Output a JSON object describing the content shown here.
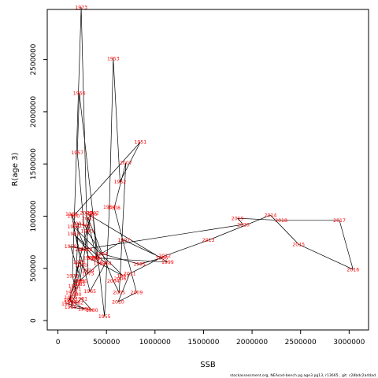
{
  "chart_data": {
    "type": "line",
    "xlabel": "SSB",
    "ylabel": "R(age 3)",
    "xlim": [
      -110000,
      3200000
    ],
    "ylim": [
      -90000,
      2980000
    ],
    "xticks": [
      0,
      500000,
      1000000,
      1500000,
      2000000,
      2500000,
      3000000
    ],
    "yticks": [
      0,
      500000,
      1000000,
      1500000,
      2000000,
      2500000
    ],
    "grid": false,
    "colors": {
      "line": "#000000",
      "labels": "#ff0000"
    },
    "points": [
      {
        "year": "1950",
        "x": 160000,
        "y": 1000000
      },
      {
        "year": "1951",
        "x": 850000,
        "y": 1710000
      },
      {
        "year": "1952",
        "x": 640000,
        "y": 1330000
      },
      {
        "year": "1953",
        "x": 570000,
        "y": 2510000
      },
      {
        "year": "1954",
        "x": 530000,
        "y": 1090000
      },
      {
        "year": "1955",
        "x": 480000,
        "y": 40000
      },
      {
        "year": "1956",
        "x": 220000,
        "y": 2180000
      },
      {
        "year": "1957",
        "x": 200000,
        "y": 1610000
      },
      {
        "year": "1958",
        "x": 290000,
        "y": 680000
      },
      {
        "year": "1959",
        "x": 130000,
        "y": 710000
      },
      {
        "year": "1960",
        "x": 240000,
        "y": 380000
      },
      {
        "year": "1961",
        "x": 220000,
        "y": 380000
      },
      {
        "year": "1962",
        "x": 430000,
        "y": 550000
      },
      {
        "year": "1963",
        "x": 160000,
        "y": 830000
      },
      {
        "year": "1964",
        "x": 490000,
        "y": 550000
      },
      {
        "year": "1965",
        "x": 330000,
        "y": 280000
      },
      {
        "year": "1966",
        "x": 160000,
        "y": 900000
      },
      {
        "year": "1967",
        "x": 670000,
        "y": 430000
      },
      {
        "year": "1968",
        "x": 320000,
        "y": 600000
      },
      {
        "year": "1969",
        "x": 140000,
        "y": 1020000
      },
      {
        "year": "1970",
        "x": 240000,
        "y": 530000
      },
      {
        "year": "1971",
        "x": 180000,
        "y": 300000
      },
      {
        "year": "1972",
        "x": 150000,
        "y": 430000
      },
      {
        "year": "1973",
        "x": 240000,
        "y": 3000000
      },
      {
        "year": "1974",
        "x": 310000,
        "y": 480000
      },
      {
        "year": "1975",
        "x": 310000,
        "y": 450000
      },
      {
        "year": "1976",
        "x": 220000,
        "y": 560000
      },
      {
        "year": "1977",
        "x": 170000,
        "y": 330000
      },
      {
        "year": "1978",
        "x": 140000,
        "y": 270000
      },
      {
        "year": "1979",
        "x": 100000,
        "y": 160000
      },
      {
        "year": "1980",
        "x": 350000,
        "y": 100000
      },
      {
        "year": "1981",
        "x": 240000,
        "y": 210000
      },
      {
        "year": "1982",
        "x": 200000,
        "y": 170000
      },
      {
        "year": "1983",
        "x": 130000,
        "y": 180000
      },
      {
        "year": "1984",
        "x": 130000,
        "y": 220000
      },
      {
        "year": "1985",
        "x": 220000,
        "y": 350000
      },
      {
        "year": "1986",
        "x": 340000,
        "y": 1020000
      },
      {
        "year": "1987",
        "x": 120000,
        "y": 200000
      },
      {
        "year": "1988",
        "x": 270000,
        "y": 110000
      },
      {
        "year": "1989",
        "x": 130000,
        "y": 130000
      },
      {
        "year": "1990",
        "x": 180000,
        "y": 250000
      },
      {
        "year": "1991",
        "x": 210000,
        "y": 930000
      },
      {
        "year": "1992",
        "x": 280000,
        "y": 910000
      },
      {
        "year": "1993",
        "x": 300000,
        "y": 860000
      },
      {
        "year": "1994",
        "x": 450000,
        "y": 640000
      },
      {
        "year": "1995",
        "x": 840000,
        "y": 540000
      },
      {
        "year": "1996",
        "x": 1070000,
        "y": 600000
      },
      {
        "year": "1997",
        "x": 680000,
        "y": 770000
      },
      {
        "year": "1998",
        "x": 370000,
        "y": 600000
      },
      {
        "year": "1999",
        "x": 1130000,
        "y": 560000
      },
      {
        "year": "2000",
        "x": 290000,
        "y": 1030000
      },
      {
        "year": "2001",
        "x": 400000,
        "y": 590000
      },
      {
        "year": "2002",
        "x": 360000,
        "y": 1030000
      },
      {
        "year": "2003",
        "x": 310000,
        "y": 980000
      },
      {
        "year": "2004",
        "x": 570000,
        "y": 380000
      },
      {
        "year": "2005",
        "x": 630000,
        "y": 270000
      },
      {
        "year": "2006",
        "x": 640000,
        "y": 400000
      },
      {
        "year": "2007",
        "x": 700000,
        "y": 1510000
      },
      {
        "year": "2008",
        "x": 580000,
        "y": 1080000
      },
      {
        "year": "2009",
        "x": 810000,
        "y": 270000
      },
      {
        "year": "2010",
        "x": 620000,
        "y": 180000
      },
      {
        "year": "2011",
        "x": 740000,
        "y": 450000
      },
      {
        "year": "2012",
        "x": 1100000,
        "y": 620000
      },
      {
        "year": "2013",
        "x": 1550000,
        "y": 770000
      },
      {
        "year": "2014",
        "x": 2190000,
        "y": 1010000
      },
      {
        "year": "2015",
        "x": 2480000,
        "y": 730000
      },
      {
        "year": "2016",
        "x": 3040000,
        "y": 490000
      },
      {
        "year": "2017",
        "x": 2900000,
        "y": 960000
      },
      {
        "year": "2018",
        "x": 2300000,
        "y": 960000
      },
      {
        "year": "2019",
        "x": 1850000,
        "y": 980000
      },
      {
        "year": "2020",
        "x": 1910000,
        "y": 920000
      },
      {
        "year": "2021",
        "x": 240000,
        "y": 680000
      }
    ]
  },
  "footnote": "stockassessment.org, NEAcod-bench pg age3 pg13, r13665 , git: c28bdc2a44ad"
}
